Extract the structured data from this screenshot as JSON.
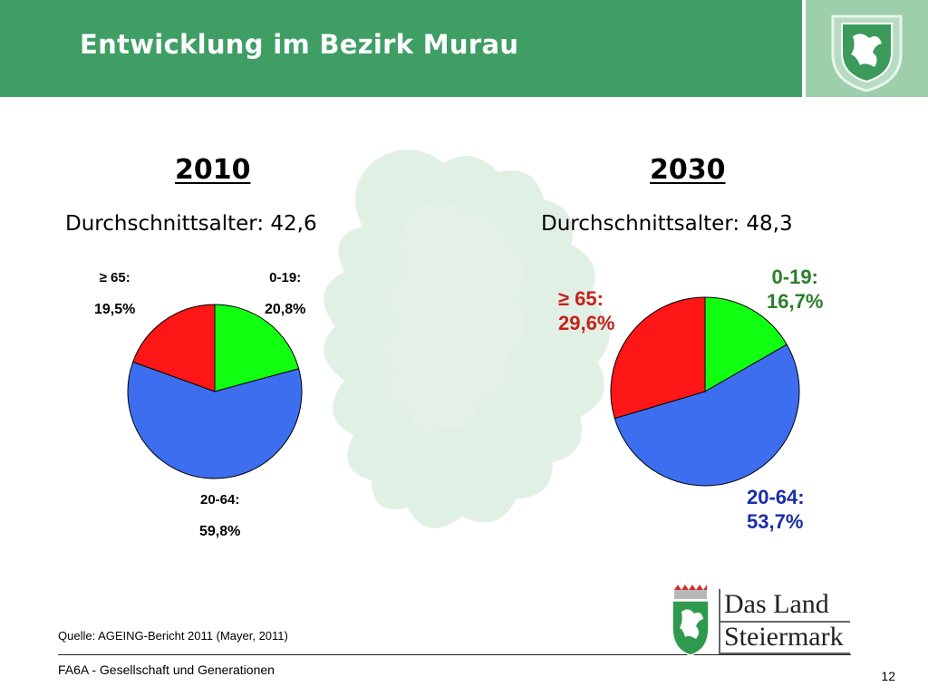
{
  "header": {
    "title": "Entwicklung im Bezirk Murau"
  },
  "colors": {
    "header_bg": "#3e9e64",
    "green": "#11ff11",
    "blue": "#3d6ef0",
    "red": "#ff1616",
    "label_green": "#2c7e2a",
    "label_red": "#c8201a",
    "label_blue": "#1a2ea8"
  },
  "chart_data": [
    {
      "type": "pie",
      "title": "2010",
      "subtitle": "Durchschnittsalter: 42,6",
      "slices": [
        {
          "group": "0-19:",
          "value": 20.8,
          "label": "20,8%",
          "color": "#11ff11"
        },
        {
          "group": "20-64:",
          "value": 59.8,
          "label": "59,8%",
          "color": "#3d6ef0"
        },
        {
          "group": "≥ 65:",
          "value": 19.5,
          "label": "19,5%",
          "color": "#ff1616"
        }
      ]
    },
    {
      "type": "pie",
      "title": "2030",
      "subtitle": "Durchschnittsalter: 48,3",
      "slices": [
        {
          "group": "0-19:",
          "value": 16.7,
          "label": "16,7%",
          "color": "#11ff11"
        },
        {
          "group": "20-64:",
          "value": 53.7,
          "label": "53,7%",
          "color": "#3d6ef0"
        },
        {
          "group": "≥ 65:",
          "value": 29.6,
          "label": "29,6%",
          "color": "#ff1616"
        }
      ]
    }
  ],
  "footer": {
    "source": "Quelle: AGEING-Bericht 2011 (Mayer, 2011)",
    "department": "FA6A - Gesellschaft und Generationen",
    "page": "12"
  },
  "logo": {
    "line1": "Das Land",
    "line2": "Steiermark",
    "icon": "styrian-panther-coat-of-arms-icon"
  }
}
